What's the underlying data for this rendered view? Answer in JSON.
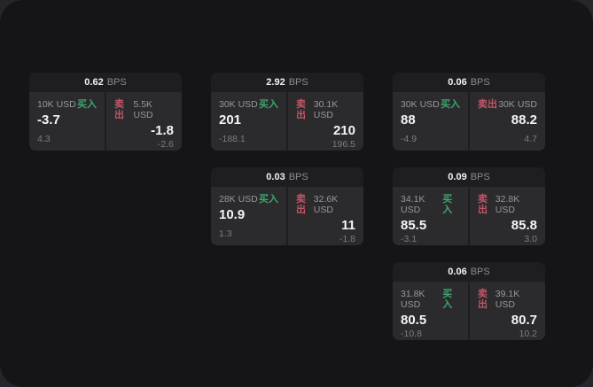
{
  "labels": {
    "buy": "买入",
    "sell": "卖出",
    "bps": "BPS"
  },
  "colors": {
    "buy_accent": "#3ea56b",
    "sell_accent": "#c05566",
    "window_bg": "#151518",
    "card_header_bg": "#1e1e21",
    "cell_bg": "#2b2b2e"
  },
  "cards": [
    {
      "col": 1,
      "row": 1,
      "spread": "0.62",
      "buy": {
        "amount": "10K USD",
        "price": "-3.7",
        "delta": "4.3"
      },
      "sell": {
        "amount": "5.5K USD",
        "price": "-1.8",
        "delta": "-2.6"
      }
    },
    {
      "col": 2,
      "row": 1,
      "spread": "2.92",
      "buy": {
        "amount": "30K USD",
        "price": "201",
        "delta": "-188.1"
      },
      "sell": {
        "amount": "30.1K USD",
        "price": "210",
        "delta": "196.5"
      }
    },
    {
      "col": 3,
      "row": 1,
      "spread": "0.06",
      "buy": {
        "amount": "30K USD",
        "price": "88",
        "delta": "-4.9"
      },
      "sell": {
        "amount": "30K USD",
        "price": "88.2",
        "delta": "4.7"
      }
    },
    {
      "col": 2,
      "row": 2,
      "spread": "0.03",
      "buy": {
        "amount": "28K USD",
        "price": "10.9",
        "delta": "1.3"
      },
      "sell": {
        "amount": "32.6K USD",
        "price": "11",
        "delta": "-1.8"
      }
    },
    {
      "col": 3,
      "row": 2,
      "spread": "0.09",
      "buy": {
        "amount": "34.1K USD",
        "price": "85.5",
        "delta": "-3.1"
      },
      "sell": {
        "amount": "32.8K USD",
        "price": "85.8",
        "delta": "3.0"
      }
    },
    {
      "col": 3,
      "row": 3,
      "spread": "0.06",
      "buy": {
        "amount": "31.8K USD",
        "price": "80.5",
        "delta": "-10.8"
      },
      "sell": {
        "amount": "39.1K USD",
        "price": "80.7",
        "delta": "10.2"
      }
    }
  ]
}
